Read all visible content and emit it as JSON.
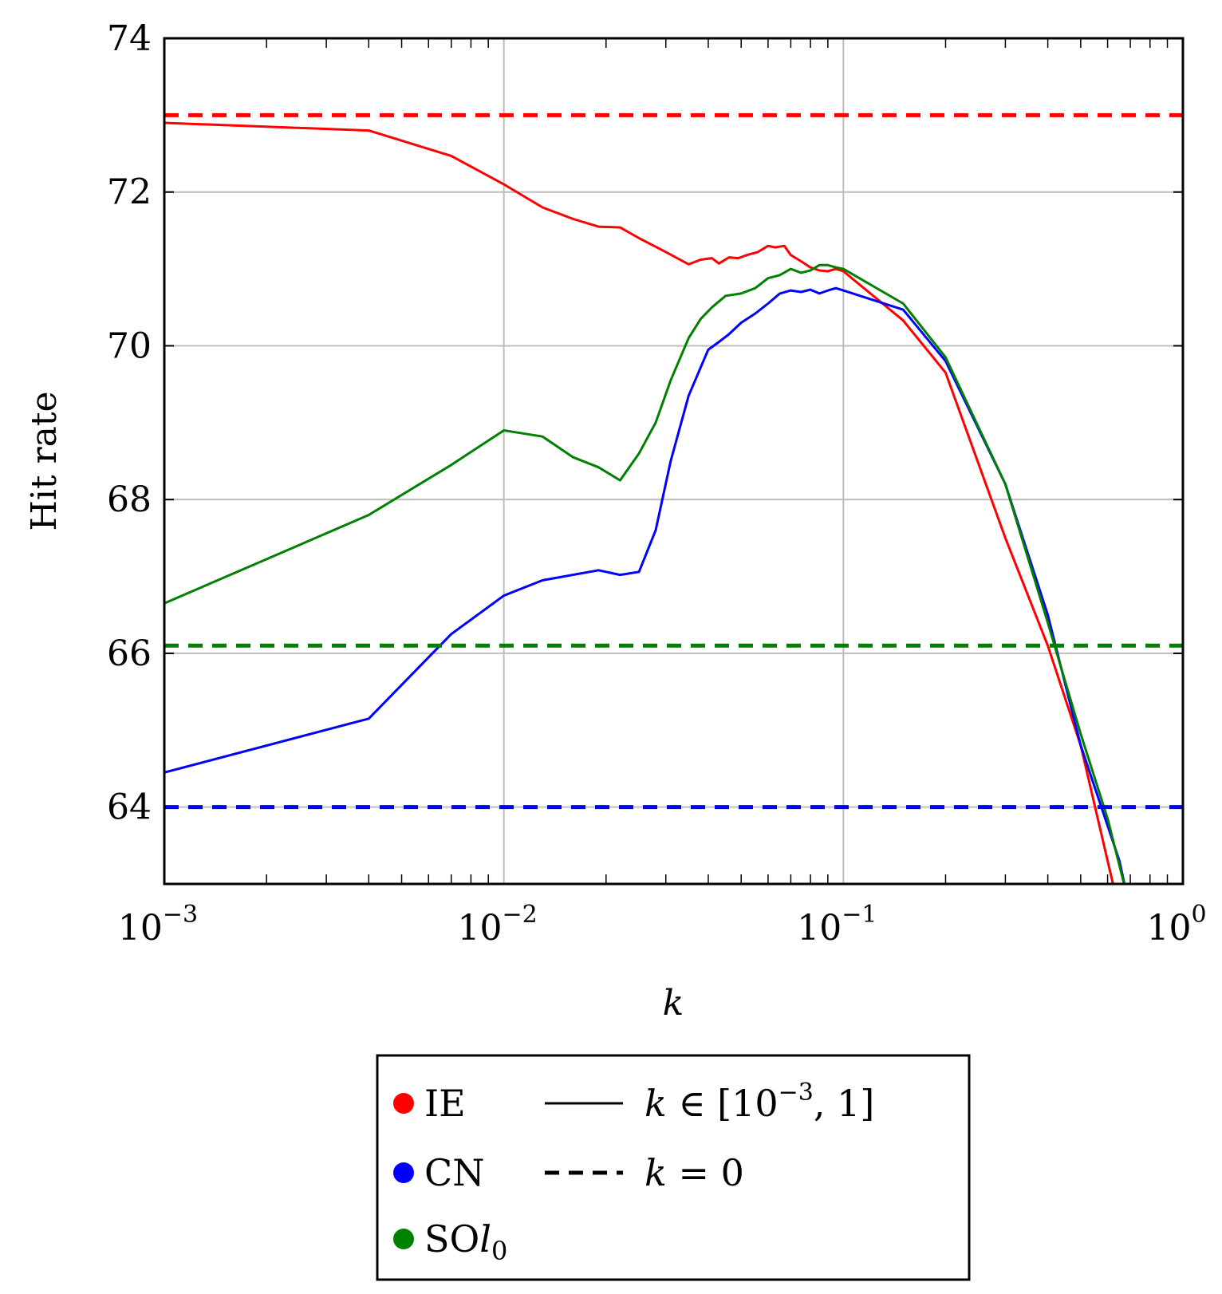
{
  "chart_data": {
    "type": "line",
    "xscale": "log",
    "xlim": [
      0.001,
      1
    ],
    "ylim": [
      63,
      74
    ],
    "grid": true,
    "xlabel": "k",
    "ylabel": "Hit rate",
    "xticks": [
      {
        "value": 0.001,
        "base": "10",
        "exp": "−3"
      },
      {
        "value": 0.01,
        "base": "10",
        "exp": "−2"
      },
      {
        "value": 0.1,
        "base": "10",
        "exp": "−1"
      },
      {
        "value": 1,
        "base": "10",
        "exp": "0"
      }
    ],
    "yticks": [
      64,
      66,
      68,
      70,
      72,
      74
    ],
    "colors": {
      "IE": "#ff0000",
      "CN": "#0000ff",
      "SOl0": "#008000"
    },
    "series": [
      {
        "name": "IE",
        "color": "#ff0000",
        "style": "solid",
        "points": [
          [
            0.001,
            72.9
          ],
          [
            0.004,
            72.8
          ],
          [
            0.007,
            72.47
          ],
          [
            0.01,
            72.1
          ],
          [
            0.013,
            71.8
          ],
          [
            0.016,
            71.65
          ],
          [
            0.019,
            71.55
          ],
          [
            0.022,
            71.54
          ],
          [
            0.025,
            71.4
          ],
          [
            0.03,
            71.22
          ],
          [
            0.035,
            71.06
          ],
          [
            0.038,
            71.12
          ],
          [
            0.041,
            71.14
          ],
          [
            0.043,
            71.07
          ],
          [
            0.046,
            71.15
          ],
          [
            0.049,
            71.14
          ],
          [
            0.052,
            71.18
          ],
          [
            0.056,
            71.22
          ],
          [
            0.06,
            71.3
          ],
          [
            0.063,
            71.28
          ],
          [
            0.067,
            71.3
          ],
          [
            0.07,
            71.18
          ],
          [
            0.075,
            71.1
          ],
          [
            0.08,
            71.02
          ],
          [
            0.085,
            70.98
          ],
          [
            0.09,
            70.97
          ],
          [
            0.095,
            71.0
          ],
          [
            0.1,
            70.97
          ],
          [
            0.15,
            70.33
          ],
          [
            0.2,
            69.65
          ],
          [
            0.3,
            67.5
          ],
          [
            0.4,
            66.1
          ],
          [
            0.5,
            64.8
          ],
          [
            0.63,
            62.9
          ]
        ]
      },
      {
        "name": "CN",
        "color": "#0000ff",
        "style": "solid",
        "points": [
          [
            0.001,
            64.45
          ],
          [
            0.004,
            65.15
          ],
          [
            0.007,
            66.25
          ],
          [
            0.01,
            66.75
          ],
          [
            0.013,
            66.95
          ],
          [
            0.019,
            67.08
          ],
          [
            0.022,
            67.02
          ],
          [
            0.025,
            67.06
          ],
          [
            0.028,
            67.6
          ],
          [
            0.031,
            68.5
          ],
          [
            0.035,
            69.35
          ],
          [
            0.04,
            69.95
          ],
          [
            0.043,
            70.05
          ],
          [
            0.046,
            70.15
          ],
          [
            0.05,
            70.3
          ],
          [
            0.055,
            70.42
          ],
          [
            0.06,
            70.55
          ],
          [
            0.065,
            70.68
          ],
          [
            0.07,
            70.72
          ],
          [
            0.075,
            70.7
          ],
          [
            0.08,
            70.73
          ],
          [
            0.085,
            70.68
          ],
          [
            0.09,
            70.72
          ],
          [
            0.095,
            70.75
          ],
          [
            0.1,
            70.72
          ],
          [
            0.15,
            70.47
          ],
          [
            0.2,
            69.8
          ],
          [
            0.3,
            68.2
          ],
          [
            0.4,
            66.5
          ],
          [
            0.5,
            64.8
          ],
          [
            0.65,
            63.3
          ],
          [
            0.68,
            62.9
          ]
        ]
      },
      {
        "name": "SOl0",
        "color": "#008000",
        "style": "solid",
        "points": [
          [
            0.001,
            66.65
          ],
          [
            0.004,
            67.8
          ],
          [
            0.007,
            68.45
          ],
          [
            0.01,
            68.9
          ],
          [
            0.013,
            68.82
          ],
          [
            0.016,
            68.55
          ],
          [
            0.019,
            68.42
          ],
          [
            0.022,
            68.25
          ],
          [
            0.025,
            68.6
          ],
          [
            0.028,
            69.0
          ],
          [
            0.031,
            69.55
          ],
          [
            0.035,
            70.1
          ],
          [
            0.038,
            70.35
          ],
          [
            0.041,
            70.5
          ],
          [
            0.045,
            70.65
          ],
          [
            0.05,
            70.68
          ],
          [
            0.055,
            70.75
          ],
          [
            0.06,
            70.88
          ],
          [
            0.065,
            70.92
          ],
          [
            0.07,
            71.0
          ],
          [
            0.075,
            70.95
          ],
          [
            0.08,
            70.98
          ],
          [
            0.085,
            71.05
          ],
          [
            0.09,
            71.05
          ],
          [
            0.095,
            71.02
          ],
          [
            0.1,
            71.0
          ],
          [
            0.15,
            70.55
          ],
          [
            0.2,
            69.85
          ],
          [
            0.3,
            68.2
          ],
          [
            0.4,
            66.4
          ],
          [
            0.5,
            64.95
          ],
          [
            0.6,
            63.85
          ],
          [
            0.68,
            62.9
          ]
        ]
      },
      {
        "name": "IE",
        "color": "#ff0000",
        "style": "dashed",
        "constant": 73.0
      },
      {
        "name": "CN",
        "color": "#0000ff",
        "style": "dashed",
        "constant": 64.0
      },
      {
        "name": "SOl0",
        "color": "#008000",
        "style": "dashed",
        "constant": 66.1
      }
    ],
    "legend": {
      "placement": "bottom-center",
      "markers": [
        {
          "label": "IE",
          "color": "#ff0000"
        },
        {
          "label": "CN",
          "color": "#0000ff"
        },
        {
          "label_main": "SO",
          "label_italic": "l",
          "label_sub": "0",
          "color": "#008000"
        }
      ],
      "styles": [
        {
          "style": "solid",
          "label_var": "k",
          "label_rest": " ∈ [10",
          "label_sup": "−3",
          "label_end": ", 1]"
        },
        {
          "style": "dashed",
          "label_var": "k",
          "label_rest": " = 0"
        }
      ]
    }
  }
}
